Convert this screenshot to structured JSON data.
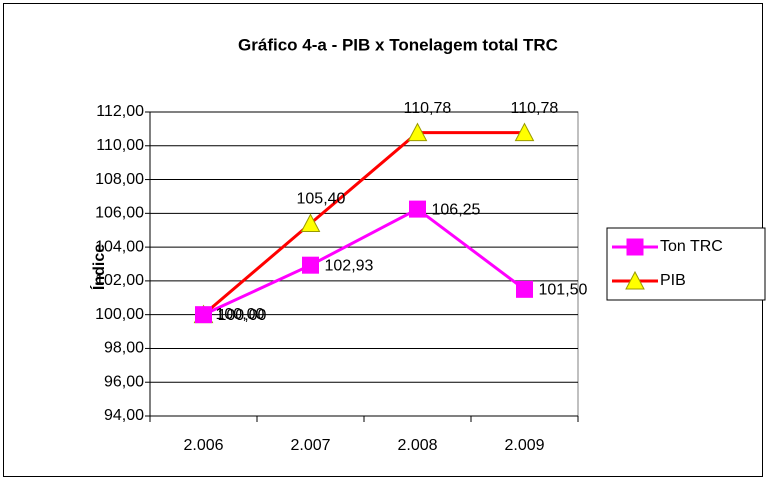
{
  "chart_data": {
    "type": "line",
    "title": "Gráfico 4-a - PIB x Tonelagem total TRC",
    "y_label": "Índice",
    "categories": [
      "2.006",
      "2.007",
      "2.008",
      "2.009"
    ],
    "series": [
      {
        "name": "Ton TRC",
        "color": "#ff00ff",
        "marker": "square",
        "values": [
          100,
          102.93,
          106.25,
          101.5
        ],
        "value_labels": [
          "100,00",
          "102,93",
          "106,25",
          "101,50"
        ]
      },
      {
        "name": "PIB",
        "color": "#ff0000",
        "marker": "triangle",
        "values": [
          100,
          105.4,
          110.78,
          110.78
        ],
        "value_labels": [
          "100,00",
          "105,40",
          "110,78",
          "110,78"
        ]
      }
    ],
    "ylim": [
      94,
      112
    ],
    "yticks": [
      {
        "value": 94,
        "label": "94,00"
      },
      {
        "value": 96,
        "label": "96,00"
      },
      {
        "value": 98,
        "label": "98,00"
      },
      {
        "value": 100,
        "label": "100,00"
      },
      {
        "value": 102,
        "label": "102,00"
      },
      {
        "value": 104,
        "label": "104,00"
      },
      {
        "value": 106,
        "label": "106,00"
      },
      {
        "value": 108,
        "label": "108,00"
      },
      {
        "value": 110,
        "label": "110,00"
      },
      {
        "value": 112,
        "label": "112,00"
      }
    ],
    "grid": true,
    "legend": "right"
  }
}
